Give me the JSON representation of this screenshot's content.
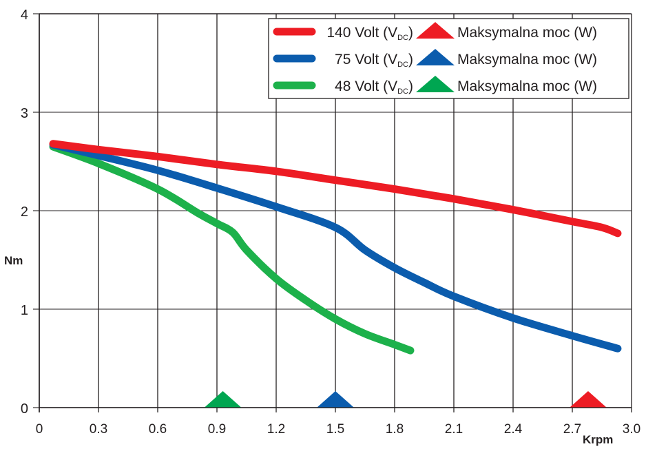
{
  "chart_data": {
    "type": "line",
    "title": "",
    "xlabel": "Krpm",
    "ylabel": "Nm",
    "xlim": [
      0,
      3.0
    ],
    "ylim": [
      0,
      4
    ],
    "x_ticks": [
      "0",
      "0.3",
      "0.6",
      "0.9",
      "1.2",
      "1.5",
      "1.8",
      "2.1",
      "2.4",
      "2.7",
      "3.0"
    ],
    "y_ticks": [
      "0",
      "1",
      "2",
      "3",
      "4"
    ],
    "grid": true,
    "legend_position": "top-right",
    "series": [
      {
        "name": "140 Volt (VDC)",
        "label_main": "140 Volt (V",
        "label_sub": "DC",
        "label_close": ")",
        "color": "#ed1c24",
        "x": [
          0.07,
          0.3,
          0.6,
          0.9,
          1.2,
          1.5,
          1.8,
          2.1,
          2.4,
          2.7,
          2.85,
          2.93
        ],
        "y": [
          2.68,
          2.62,
          2.55,
          2.47,
          2.4,
          2.31,
          2.22,
          2.12,
          2.01,
          1.89,
          1.83,
          1.77
        ]
      },
      {
        "name": "75 Volt (VDC)",
        "label_main": "75 Volt (V",
        "label_sub": "DC",
        "label_close": ")",
        "color": "#0b5cad",
        "x": [
          0.07,
          0.3,
          0.6,
          0.9,
          1.2,
          1.5,
          1.65,
          1.8,
          1.95,
          2.1,
          2.4,
          2.7,
          2.93
        ],
        "y": [
          2.67,
          2.56,
          2.41,
          2.23,
          2.04,
          1.83,
          1.6,
          1.42,
          1.27,
          1.13,
          0.91,
          0.73,
          0.6
        ]
      },
      {
        "name": "48 Volt (VDC)",
        "label_main": "48 Volt (V",
        "label_sub": "DC",
        "label_close": ")",
        "color": "#1db14b",
        "x": [
          0.07,
          0.3,
          0.6,
          0.8,
          0.9,
          0.98,
          1.05,
          1.2,
          1.35,
          1.5,
          1.65,
          1.8,
          1.88
        ],
        "y": [
          2.65,
          2.48,
          2.22,
          1.98,
          1.87,
          1.78,
          1.6,
          1.31,
          1.09,
          0.9,
          0.75,
          0.64,
          0.58
        ]
      }
    ],
    "markers": [
      {
        "name": "Maksymalna moc (W)",
        "series": "140 Volt (VDC)",
        "x": 2.78,
        "color": "#ed1c24"
      },
      {
        "name": "Maksymalna moc (W)",
        "series": "75 Volt (VDC)",
        "x": 1.5,
        "color": "#0b5cad"
      },
      {
        "name": "Maksymalna moc (W)",
        "series": "48 Volt (VDC)",
        "x": 0.93,
        "color": "#00a651"
      }
    ],
    "legend": [
      {
        "line_label": "140 Volt (VDC)",
        "marker_label": "Maksymalna moc (W)",
        "line_color": "#ed1c24",
        "marker_color": "#ed1c24"
      },
      {
        "line_label": "75 Volt (VDC)",
        "marker_label": "Maksymalna moc (W)",
        "line_color": "#0b5cad",
        "marker_color": "#0b5cad"
      },
      {
        "line_label": "48 Volt (VDC)",
        "marker_label": "Maksymalna moc (W)",
        "line_color": "#1db14b",
        "marker_color": "#00a651"
      }
    ]
  }
}
